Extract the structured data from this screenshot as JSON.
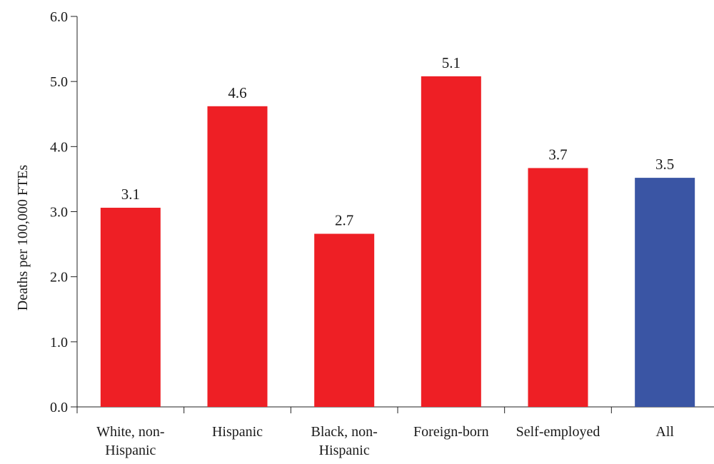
{
  "chart_data": {
    "type": "bar",
    "title": "",
    "xlabel": "",
    "ylabel": "Deaths per 100,000 FTEs",
    "ylim": [
      0,
      6
    ],
    "yticks": [
      "0.0",
      "1.0",
      "2.0",
      "3.0",
      "4.0",
      "5.0",
      "6.0"
    ],
    "grid": false,
    "categories": [
      [
        "White, non-",
        "Hispanic"
      ],
      [
        "Hispanic"
      ],
      [
        "Black, non-",
        "Hispanic"
      ],
      [
        "Foreign-born"
      ],
      [
        "Self-employed"
      ],
      [
        "All"
      ]
    ],
    "values": [
      3.06,
      4.62,
      2.66,
      5.08,
      3.67,
      3.52
    ],
    "value_labels": [
      "3.1",
      "4.6",
      "2.7",
      "5.1",
      "3.7",
      "3.5"
    ],
    "colors": [
      "#ee1f25",
      "#ee1f25",
      "#ee1f25",
      "#ee1f25",
      "#ee1f25",
      "#3a55a4"
    ]
  }
}
